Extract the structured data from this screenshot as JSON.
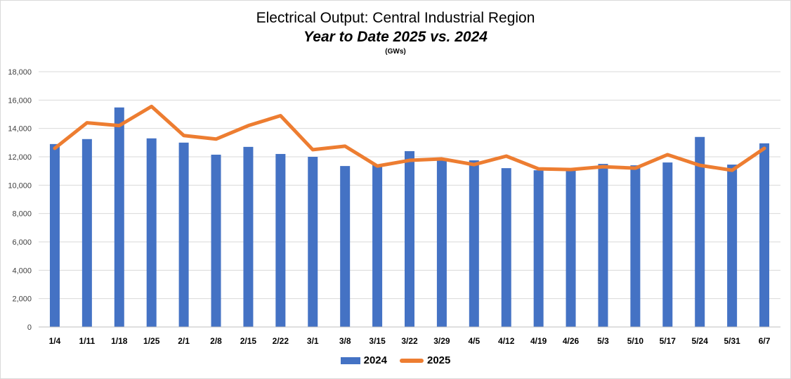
{
  "title": {
    "line1": "Electrical Output:  Central Industrial Region",
    "line2": "Year to Date 2025 vs. 2024",
    "units": "(GWs)"
  },
  "colors": {
    "series_2024": "#4472c4",
    "series_2025": "#ed7d31",
    "gridline": "#d9d9d9",
    "axis": "#bfbfbf"
  },
  "chart_data": {
    "type": "bar",
    "title": "Electrical Output:  Central Industrial Region",
    "subtitle": "Year to Date 2025 vs. 2024",
    "units": "(GWs)",
    "xlabel": "",
    "ylabel": "",
    "ylim": [
      0,
      18000
    ],
    "yticks": [
      0,
      2000,
      4000,
      6000,
      8000,
      10000,
      12000,
      14000,
      16000,
      18000
    ],
    "ytick_labels": [
      "0",
      "2,000",
      "4,000",
      "6,000",
      "8,000",
      "10,000",
      "12,000",
      "14,000",
      "16,000",
      "18,000"
    ],
    "grid": true,
    "legend_position": "bottom",
    "categories": [
      "1/4",
      "1/11",
      "1/18",
      "1/25",
      "2/1",
      "2/8",
      "2/15",
      "2/22",
      "3/1",
      "3/8",
      "3/15",
      "3/22",
      "3/29",
      "4/5",
      "4/12",
      "4/19",
      "4/26",
      "5/3",
      "5/10",
      "5/17",
      "5/24",
      "5/31",
      "6/7"
    ],
    "series": [
      {
        "name": "2024",
        "type": "bar",
        "values": [
          12900,
          13250,
          15480,
          13300,
          13000,
          12150,
          12700,
          12200,
          12000,
          11350,
          11450,
          12400,
          11750,
          11750,
          11200,
          11050,
          11100,
          11500,
          11400,
          11600,
          13400,
          11450,
          12950
        ]
      },
      {
        "name": "2025",
        "type": "line",
        "values": [
          12600,
          14400,
          14200,
          15550,
          13500,
          13250,
          14200,
          14900,
          12500,
          12750,
          11350,
          11750,
          11850,
          11450,
          12050,
          11150,
          11100,
          11300,
          11200,
          12150,
          11400,
          11050,
          12600
        ]
      }
    ]
  }
}
